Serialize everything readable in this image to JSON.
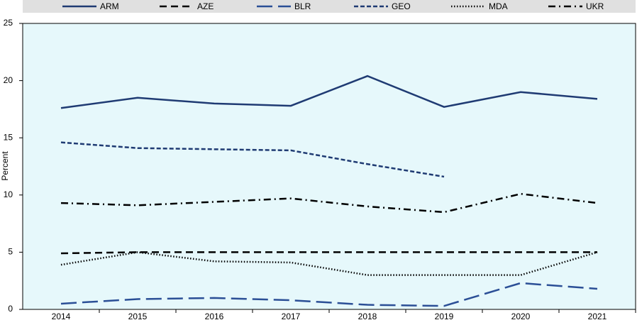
{
  "chart_data": {
    "type": "line",
    "y_label": "Percent",
    "categories": [
      "2014",
      "2015",
      "2016",
      "2017",
      "2018",
      "2019",
      "2020",
      "2021"
    ],
    "ylim": [
      0,
      25
    ],
    "yticks": [
      0,
      5,
      10,
      15,
      20,
      25
    ],
    "grid": false,
    "legend": "top",
    "series": [
      {
        "name": "ARM",
        "color": "#1f3b73",
        "dash": "solid",
        "values": [
          17.6,
          18.5,
          18.0,
          17.8,
          20.4,
          17.7,
          19.0,
          18.4
        ]
      },
      {
        "name": "AZE",
        "color": "#000000",
        "dash": "dashed",
        "values": [
          4.9,
          5.0,
          5.0,
          5.0,
          5.0,
          5.0,
          5.0,
          5.0
        ]
      },
      {
        "name": "BLR",
        "color": "#2b4f96",
        "dash": "long-dashed",
        "values": [
          0.5,
          0.9,
          1.0,
          0.8,
          0.4,
          0.3,
          2.3,
          1.8
        ]
      },
      {
        "name": "GEO",
        "color": "#1f3b73",
        "dash": "short-dashed",
        "values": [
          14.6,
          14.1,
          14.0,
          13.9,
          12.7,
          11.6,
          null,
          null
        ]
      },
      {
        "name": "MDA",
        "color": "#000000",
        "dash": "dotted",
        "values": [
          3.9,
          5.0,
          4.2,
          4.1,
          3.0,
          3.0,
          3.0,
          5.0
        ]
      },
      {
        "name": "UKR",
        "color": "#000000",
        "dash": "dash-dot",
        "values": [
          9.3,
          9.1,
          9.4,
          9.7,
          9.0,
          8.5,
          10.1,
          9.3
        ]
      }
    ]
  }
}
